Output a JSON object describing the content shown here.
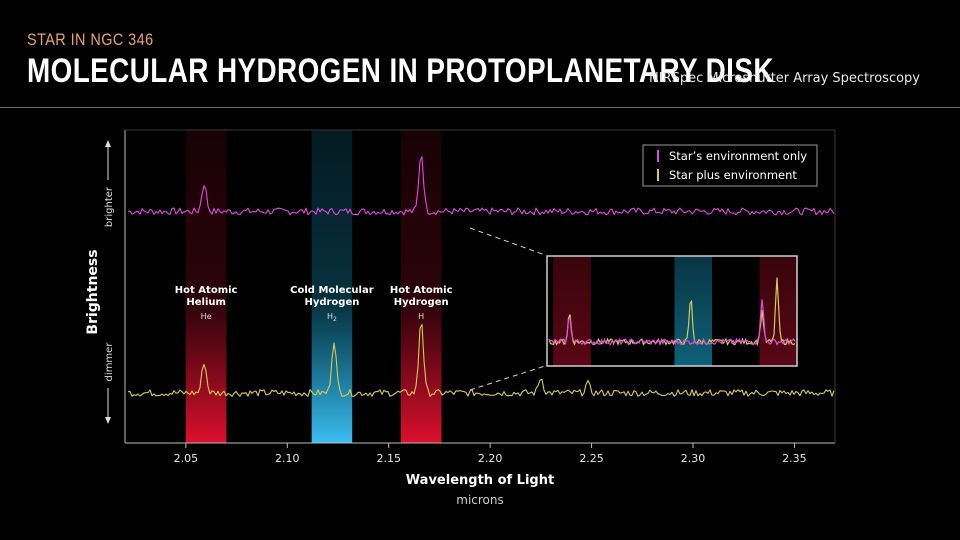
{
  "header": {
    "supertitle": "STAR IN NGC 346",
    "title": "MOLECULAR HYDROGEN IN PROTOPLANETARY DISK",
    "instrument": "NIRSpec Microshutter Array Spectroscopy"
  },
  "chart_data": {
    "type": "line",
    "xlabel": "Wavelength of Light",
    "xunit": "microns",
    "ylabel": "Brightness",
    "ytop": "brighter",
    "ybottom": "dimmer",
    "xlim": [
      2.02,
      2.37
    ],
    "xticks": [
      "2.05",
      "2.10",
      "2.15",
      "2.20",
      "2.25",
      "2.30",
      "2.35"
    ],
    "grid": false,
    "legend_position": "top-right",
    "legend": [
      {
        "label": "Star’s environment only",
        "color": "#d94fd8"
      },
      {
        "label": "Star plus environment",
        "color": "#d6cc55"
      }
    ],
    "bands": [
      {
        "label_lines": [
          "Hot Atomic",
          "Helium"
        ],
        "species": "He",
        "center": 2.06,
        "width": 0.02,
        "color": "#c8102e"
      },
      {
        "label_lines": [
          "Cold Molecular",
          "Hydrogen"
        ],
        "species": "H",
        "species_sub": "2",
        "center": 2.122,
        "width": 0.02,
        "color": "#1ab0de"
      },
      {
        "label_lines": [
          "Hot Atomic",
          "Hydrogen"
        ],
        "species": "H",
        "center": 2.166,
        "width": 0.02,
        "color": "#c8102e"
      }
    ],
    "series": [
      {
        "name": "Star’s environment only",
        "color": "#d94fd8",
        "level": 0.74,
        "peaks": [
          {
            "x": 2.059,
            "height": 0.09
          },
          {
            "x": 2.166,
            "height": 0.19
          }
        ]
      },
      {
        "name": "Star plus environment",
        "color": "#d6cc55",
        "level": 0.16,
        "peaks": [
          {
            "x": 2.059,
            "height": 0.1
          },
          {
            "x": 2.123,
            "height": 0.17
          },
          {
            "x": 2.166,
            "height": 0.24
          },
          {
            "x": 2.225,
            "height": 0.05
          },
          {
            "x": 2.248,
            "height": 0.03
          }
        ]
      }
    ],
    "inset": {
      "description": "zoomed view",
      "bands": [
        "#c8102e",
        "#1ab0de",
        "#c8102e"
      ]
    }
  },
  "colors": {
    "background": "#000000",
    "accent_title": "#e7a56c",
    "axis": "#cccccc",
    "band_red": "#c8102e",
    "band_blue": "#1ab0de"
  }
}
